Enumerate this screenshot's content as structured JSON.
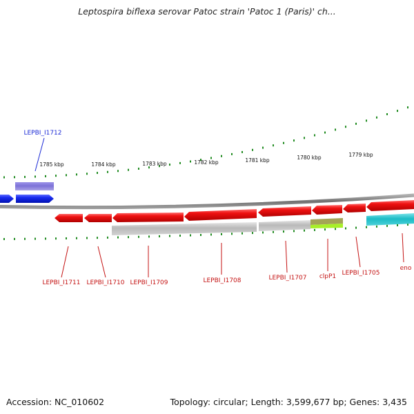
{
  "title": "Leptospira biflexa serovar Patoc strain 'Patoc 1 (Paris)' ch...",
  "footer": {
    "accession": "Accession: NC_010602",
    "stats": "Topology: circular; Length: 3,599,677 bp; Genes: 3,435"
  },
  "scale_labels": [
    "1785 kbp",
    "1784 kbp",
    "1783 kbp",
    "1782 kbp",
    "1781 kbp",
    "1780 kbp",
    "1779 kbp"
  ],
  "gene_labels": {
    "top": [
      {
        "id": "lepbi-i1712",
        "text": "LEPBI_I1712"
      }
    ],
    "bottom": [
      {
        "id": "lepbi-i1711",
        "text": "LEPBI_I1711"
      },
      {
        "id": "lepbi-i1710",
        "text": "LEPBI_I1710"
      },
      {
        "id": "lepbi-i1709",
        "text": "LEPBI_I1709"
      },
      {
        "id": "lepbi-i1708",
        "text": "LEPBI_I1708"
      },
      {
        "id": "lepbi-i1707",
        "text": "LEPBI_I1707"
      },
      {
        "id": "clpp1",
        "text": "clpP1"
      },
      {
        "id": "lepbi-i1705",
        "text": "LEPBI_I1705"
      },
      {
        "id": "eno",
        "text": "eno"
      }
    ]
  },
  "colors": {
    "forward_gene": "#1a2cf0",
    "reverse_gene": "#ee1111",
    "top_feature": "#7d72d8",
    "gray_feature": "#b9b9b9",
    "olive_feature": "#a4a456",
    "lime_feature": "#a8f028",
    "cyan_feature": "#1cbcc6",
    "backbone": "#858585",
    "ticks": "#1e8a1e",
    "blue_label": "#1c2bd6",
    "red_label": "#c41212"
  }
}
